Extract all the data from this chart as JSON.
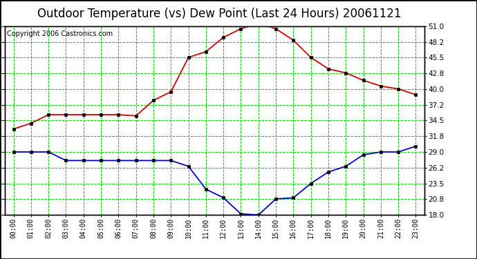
{
  "title": "Outdoor Temperature (vs) Dew Point (Last 24 Hours) 20061121",
  "copyright": "Copyright 2006 Castronics.com",
  "hours": [
    "00:00",
    "01:00",
    "02:00",
    "03:00",
    "04:00",
    "05:00",
    "06:00",
    "07:00",
    "08:00",
    "09:00",
    "10:00",
    "11:00",
    "12:00",
    "13:00",
    "14:00",
    "15:00",
    "16:00",
    "17:00",
    "18:00",
    "19:00",
    "20:00",
    "21:00",
    "22:00",
    "23:00"
  ],
  "temp": [
    33.0,
    34.0,
    35.5,
    35.5,
    35.5,
    35.5,
    35.5,
    35.3,
    38.0,
    39.5,
    45.5,
    46.5,
    49.0,
    50.5,
    51.5,
    50.5,
    48.5,
    45.5,
    43.5,
    42.8,
    41.5,
    40.5,
    40.0,
    39.0
  ],
  "dew": [
    29.0,
    29.0,
    29.0,
    27.5,
    27.5,
    27.5,
    27.5,
    27.5,
    27.5,
    27.5,
    26.5,
    22.5,
    21.0,
    18.2,
    18.0,
    20.8,
    21.0,
    23.5,
    25.5,
    26.5,
    28.5,
    29.0,
    29.0,
    30.0
  ],
  "ylim": [
    18.0,
    51.0
  ],
  "yticks": [
    18.0,
    20.8,
    23.5,
    26.2,
    29.0,
    31.8,
    34.5,
    37.2,
    40.0,
    42.8,
    45.5,
    48.2,
    51.0
  ],
  "temp_color": "#cc0000",
  "dew_color": "#0000cc",
  "grid_color": "#00cc00",
  "bg_color": "#ffffff",
  "title_fontsize": 12,
  "copyright_fontsize": 7,
  "tick_fontsize": 7.5,
  "xlabel_fontsize": 7
}
